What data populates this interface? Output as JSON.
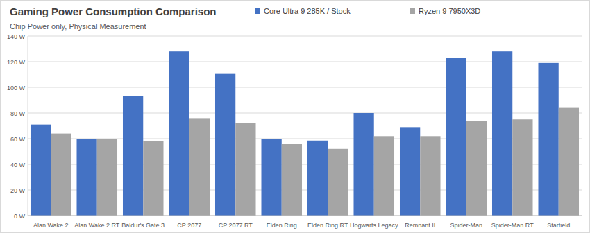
{
  "chart_data": {
    "type": "bar",
    "title": "Gaming Power Consumption Comparison",
    "subtitle": "Chip Power only, Physical Measurement",
    "categories": [
      "Alan Wake 2",
      "Alan Wake 2 RT",
      "Baldur's Gate 3",
      "CP 2077",
      "CP 2077 RT",
      "Elden Ring",
      "Elden Ring RT",
      "Hogwarts Legacy",
      "Remnant II",
      "Spider-Man",
      "Spider-Man RT",
      "Starfield"
    ],
    "series": [
      {
        "name": "Core Ultra 9 285K / Stock",
        "color": "#4472c4",
        "values": [
          71,
          60,
          93,
          128,
          111,
          60,
          58.5,
          80,
          69,
          123,
          128,
          119
        ]
      },
      {
        "name": "Ryzen 9 7950X3D",
        "color": "#a5a5a5",
        "values": [
          64,
          60,
          58,
          76,
          72,
          56,
          52,
          62,
          62,
          74,
          75,
          84
        ]
      }
    ],
    "ylim": [
      0,
      140
    ],
    "yticks": [
      {
        "value": 0,
        "label": "0 W"
      },
      {
        "value": 20,
        "label": "20 W"
      },
      {
        "value": 40,
        "label": "40 W"
      },
      {
        "value": 60,
        "label": "60 W"
      },
      {
        "value": 80,
        "label": "80 W"
      },
      {
        "value": 100,
        "label": "100 W"
      },
      {
        "value": 120,
        "label": "120 W"
      },
      {
        "value": 140,
        "label": "140 W"
      }
    ],
    "grid": true,
    "legend": "top"
  }
}
